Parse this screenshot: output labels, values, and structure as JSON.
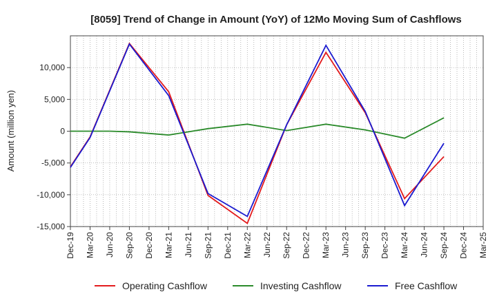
{
  "chart_data": {
    "type": "line",
    "title": "[8059]  Trend of Change in Amount (YoY) of 12Mo Moving Sum of Cashflows",
    "xlabel": "",
    "ylabel": "Amount (million yen)",
    "ylim": [
      -15000,
      15000
    ],
    "yticks": [
      10000,
      5000,
      0,
      -5000,
      -10000,
      -15000
    ],
    "ytick_labels": [
      "10,000",
      "5,000",
      "0",
      "-5,000",
      "-10,000",
      "-15,000"
    ],
    "categories": [
      "Dec-19",
      "Mar-20",
      "Jun-20",
      "Sep-20",
      "Dec-20",
      "Mar-21",
      "Jun-21",
      "Sep-21",
      "Dec-21",
      "Mar-22",
      "Jun-22",
      "Sep-22",
      "Dec-22",
      "Mar-23",
      "Jun-23",
      "Sep-23",
      "Dec-23",
      "Mar-24",
      "Jun-24",
      "Sep-24",
      "Dec-24",
      "Mar-25"
    ],
    "grid": true,
    "legend_position": "bottom",
    "series": [
      {
        "name": "Operating Cashflow",
        "color": "#e31a1c",
        "values": [
          -5600,
          -900,
          null,
          13800,
          null,
          6200,
          null,
          -10100,
          null,
          -14500,
          null,
          1000,
          null,
          12400,
          null,
          2900,
          null,
          -10600,
          null,
          -4000,
          null,
          null
        ]
      },
      {
        "name": "Investing Cashflow",
        "color": "#2a8a2a",
        "values": [
          0,
          null,
          0,
          -100,
          null,
          -600,
          null,
          400,
          null,
          1100,
          null,
          100,
          null,
          1100,
          null,
          200,
          null,
          -1100,
          null,
          2100,
          null,
          null
        ]
      },
      {
        "name": "Free Cashflow",
        "color": "#1a1ad0",
        "values": [
          -5700,
          -1000,
          null,
          13700,
          null,
          5600,
          null,
          -9800,
          null,
          -13400,
          null,
          1000,
          null,
          13500,
          null,
          3100,
          null,
          -11700,
          null,
          -1900,
          null,
          null
        ]
      }
    ]
  }
}
